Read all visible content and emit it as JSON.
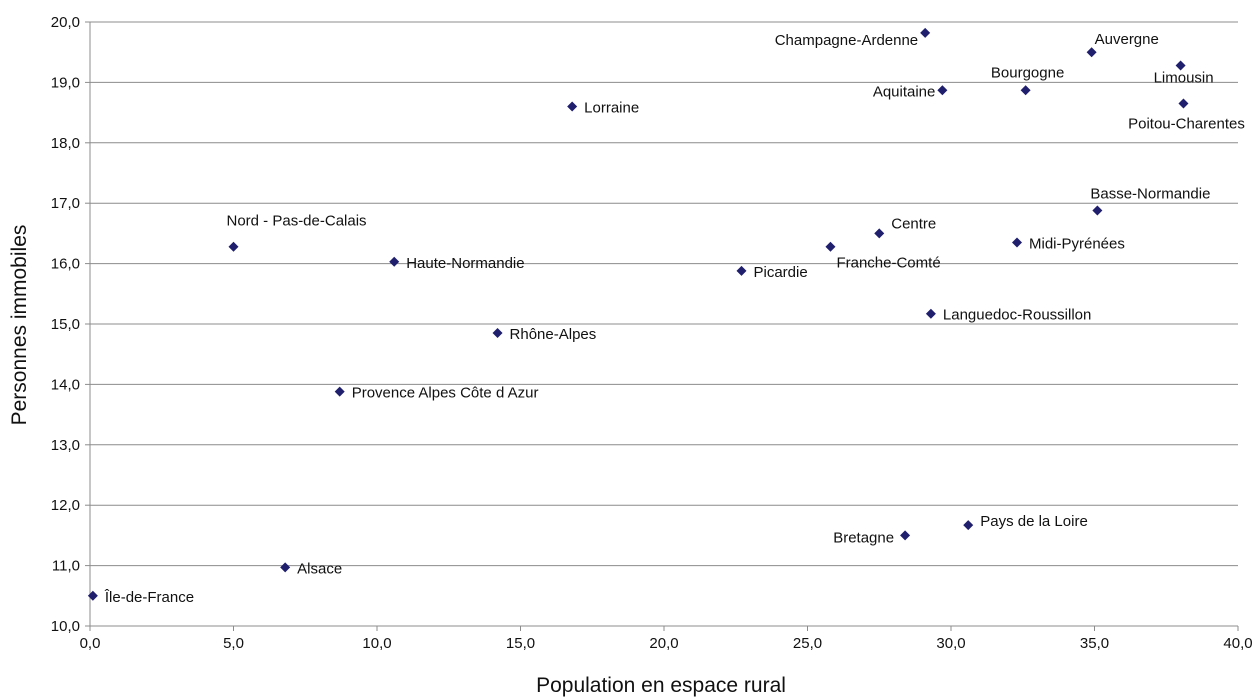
{
  "chart_data": {
    "type": "scatter",
    "title": "",
    "xlabel": "Population en espace rural",
    "ylabel": "Personnes immobiles",
    "xlim": [
      0,
      40
    ],
    "ylim": [
      10,
      20
    ],
    "xticks": [
      "0,0",
      "5,0",
      "10,0",
      "15,0",
      "20,0",
      "25,0",
      "30,0",
      "35,0",
      "40,0"
    ],
    "yticks": [
      "10,0",
      "11,0",
      "12,0",
      "13,0",
      "14,0",
      "15,0",
      "16,0",
      "17,0",
      "18,0",
      "19,0",
      "20,0"
    ],
    "grid": "horizontal",
    "marker_color": "#1f1f6e",
    "points": [
      {
        "label": "Île-de-France",
        "x": 0.1,
        "y": 10.5
      },
      {
        "label": "Alsace",
        "x": 6.8,
        "y": 10.97
      },
      {
        "label": "Provence Alpes Côte d Azur",
        "x": 8.7,
        "y": 13.88
      },
      {
        "label": "Haute-Normandie",
        "x": 10.6,
        "y": 16.03
      },
      {
        "label": "Nord - Pas-de-Calais",
        "x": 5.0,
        "y": 16.28
      },
      {
        "label": "Rhône-Alpes",
        "x": 14.2,
        "y": 14.85
      },
      {
        "label": "Lorraine",
        "x": 16.8,
        "y": 18.6
      },
      {
        "label": "Picardie",
        "x": 22.7,
        "y": 15.88
      },
      {
        "label": "Franche-Comté",
        "x": 25.8,
        "y": 16.28
      },
      {
        "label": "Centre",
        "x": 27.5,
        "y": 16.5
      },
      {
        "label": "Bretagne",
        "x": 28.4,
        "y": 11.5
      },
      {
        "label": "Champagne-Ardenne",
        "x": 29.1,
        "y": 19.82
      },
      {
        "label": "Languedoc-Roussillon",
        "x": 29.3,
        "y": 15.17
      },
      {
        "label": "Aquitaine",
        "x": 29.7,
        "y": 18.87
      },
      {
        "label": "Pays de la Loire",
        "x": 30.6,
        "y": 11.67
      },
      {
        "label": "Midi-Pyrénées",
        "x": 32.3,
        "y": 16.35
      },
      {
        "label": "Bourgogne",
        "x": 32.6,
        "y": 18.87
      },
      {
        "label": "Auvergne",
        "x": 34.9,
        "y": 19.5
      },
      {
        "label": "Basse-Normandie",
        "x": 35.1,
        "y": 16.88
      },
      {
        "label": "Limousin",
        "x": 38.0,
        "y": 19.28
      },
      {
        "label": "Poitou-Charentes",
        "x": 38.1,
        "y": 18.65
      }
    ]
  }
}
